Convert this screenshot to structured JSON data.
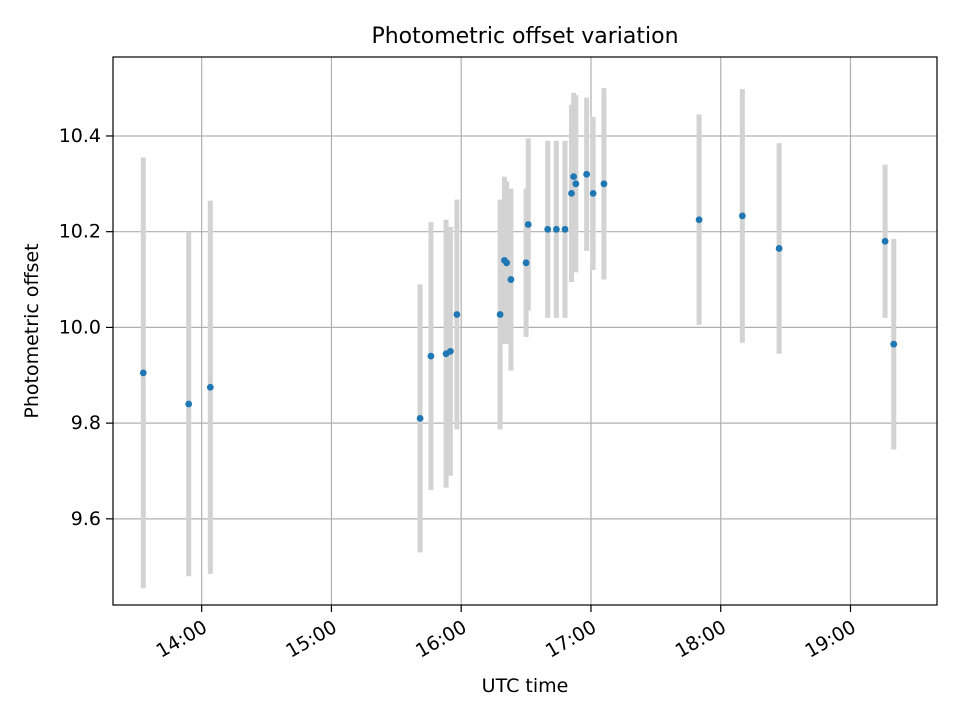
{
  "chart_data": {
    "type": "scatter",
    "title": "Photometric offset variation",
    "xlabel": "UTC time",
    "ylabel": "Photometric offset",
    "x_kind": "time",
    "xlim": [
      "13:19",
      "19:40"
    ],
    "ylim": [
      9.42,
      10.565
    ],
    "x_ticks": [
      "14:00",
      "15:00",
      "16:00",
      "17:00",
      "18:00",
      "19:00"
    ],
    "y_ticks": [
      "9.6",
      "9.8",
      "10.0",
      "10.2",
      "10.4"
    ],
    "grid": true,
    "legend": "none",
    "colors": {
      "point": "#1f77b4",
      "errorbar": "#d3d3d3",
      "grid": "#b0b0b0",
      "axes": "#000000"
    },
    "series": [
      {
        "points": [
          {
            "x": "13:33",
            "y": 9.905,
            "yerr": 0.45
          },
          {
            "x": "13:54",
            "y": 9.84,
            "yerr": 0.36
          },
          {
            "x": "14:04",
            "y": 9.875,
            "yerr": 0.39
          },
          {
            "x": "15:41",
            "y": 9.81,
            "yerr": 0.28
          },
          {
            "x": "15:46",
            "y": 9.94,
            "yerr": 0.28
          },
          {
            "x": "15:53",
            "y": 9.945,
            "yerr": 0.28
          },
          {
            "x": "15:55",
            "y": 9.95,
            "yerr": 0.26
          },
          {
            "x": "15:58",
            "y": 10.027,
            "yerr": 0.24
          },
          {
            "x": "16:18",
            "y": 10.027,
            "yerr": 0.24
          },
          {
            "x": "16:20",
            "y": 10.14,
            "yerr": 0.175
          },
          {
            "x": "16:21",
            "y": 10.135,
            "yerr": 0.17
          },
          {
            "x": "16:23",
            "y": 10.1,
            "yerr": 0.19
          },
          {
            "x": "16:30",
            "y": 10.135,
            "yerr": 0.155
          },
          {
            "x": "16:31",
            "y": 10.215,
            "yerr": 0.18
          },
          {
            "x": "16:40",
            "y": 10.205,
            "yerr": 0.185
          },
          {
            "x": "16:44",
            "y": 10.205,
            "yerr": 0.185
          },
          {
            "x": "16:48",
            "y": 10.205,
            "yerr": 0.185
          },
          {
            "x": "16:51",
            "y": 10.28,
            "yerr": 0.185
          },
          {
            "x": "16:52",
            "y": 10.315,
            "yerr": 0.175
          },
          {
            "x": "16:53",
            "y": 10.3,
            "yerr": 0.185
          },
          {
            "x": "16:58",
            "y": 10.32,
            "yerr": 0.16
          },
          {
            "x": "17:01",
            "y": 10.28,
            "yerr": 0.16
          },
          {
            "x": "17:06",
            "y": 10.3,
            "yerr": 0.2
          },
          {
            "x": "17:50",
            "y": 10.225,
            "yerr": 0.22
          },
          {
            "x": "18:10",
            "y": 10.233,
            "yerr": 0.265
          },
          {
            "x": "18:27",
            "y": 10.165,
            "yerr": 0.22
          },
          {
            "x": "19:16",
            "y": 10.18,
            "yerr": 0.16
          },
          {
            "x": "19:20",
            "y": 9.965,
            "yerr": 0.22
          }
        ]
      }
    ]
  }
}
